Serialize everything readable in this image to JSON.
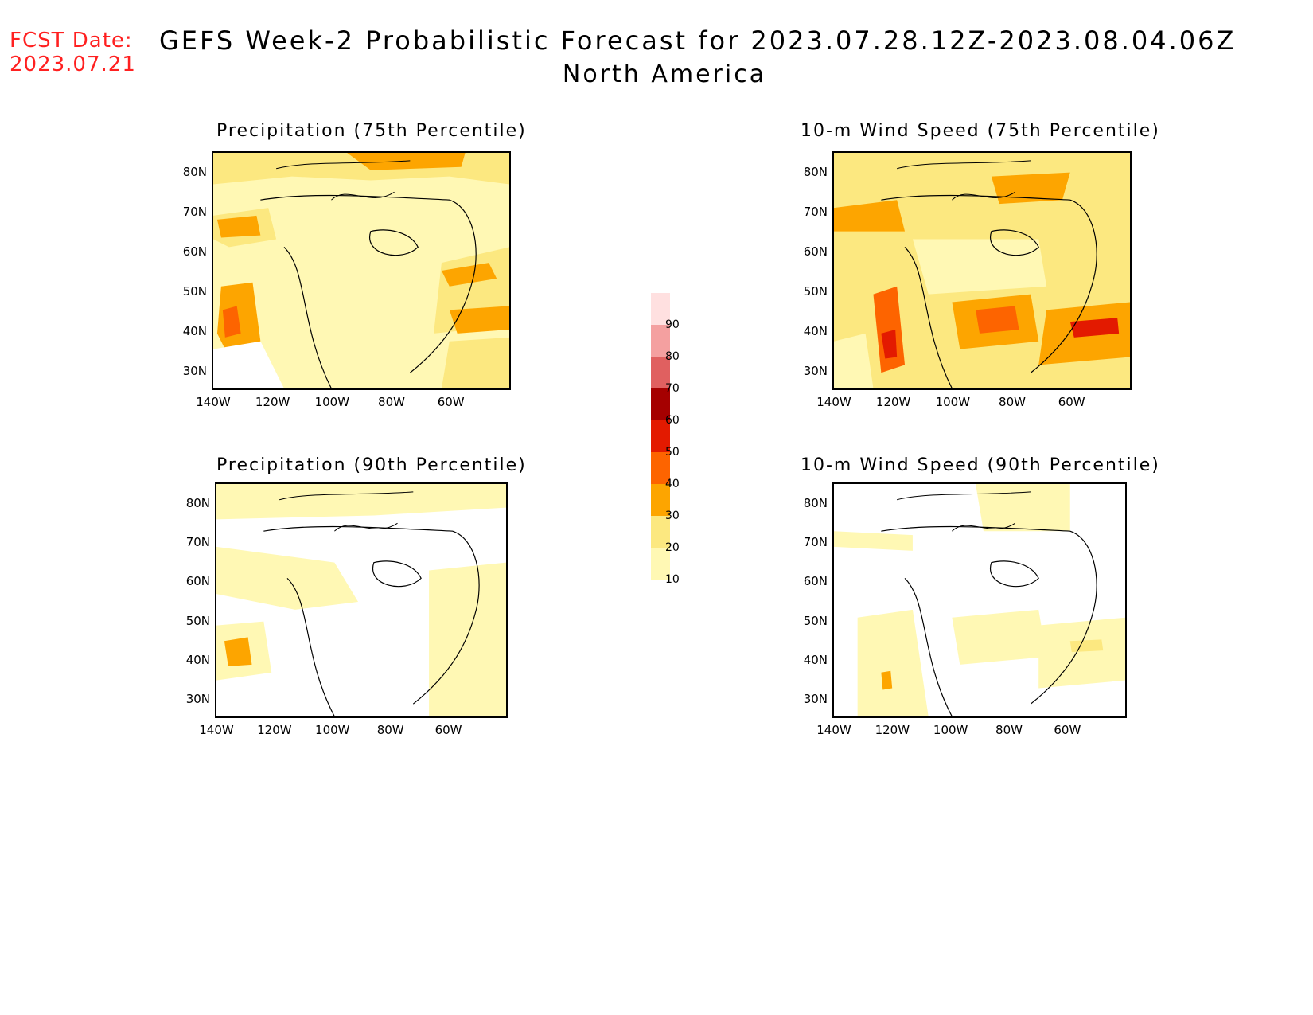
{
  "header": {
    "fcst_label": "FCST Date:",
    "fcst_date": "2023.07.21",
    "title": "GEFS Week-2 Probabilistic Forecast for 2023.07.28.12Z-2023.08.04.06Z",
    "region": "North America"
  },
  "panels": [
    {
      "id": "p75",
      "title": "Precipitation (75th Percentile)"
    },
    {
      "id": "w75",
      "title": "10-m Wind Speed (75th Percentile)"
    },
    {
      "id": "p90",
      "title": "Precipitation (90th Percentile)"
    },
    {
      "id": "w90",
      "title": "10-m Wind Speed (90th Percentile)"
    }
  ],
  "axes": {
    "lat_labels": [
      "80N",
      "70N",
      "60N",
      "50N",
      "40N",
      "30N"
    ],
    "lon_labels": [
      "140W",
      "120W",
      "100W",
      "80W",
      "60W"
    ]
  },
  "colorbar": {
    "levels": [
      "10",
      "20",
      "30",
      "40",
      "50",
      "60",
      "70",
      "80",
      "90"
    ],
    "colors": [
      "#fff8b4",
      "#fce880",
      "#fda500",
      "#fd6400",
      "#e31a00",
      "#a50000",
      "#e06060",
      "#f4a0a0",
      "#ffe0e0"
    ]
  },
  "colors": {
    "fcst_text": "#ff2020"
  }
}
